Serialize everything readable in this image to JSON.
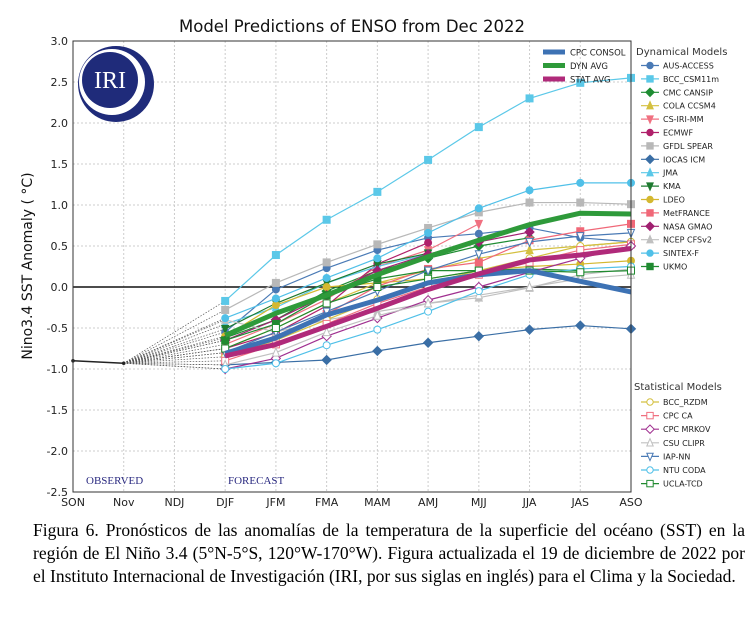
{
  "chart_data": {
    "type": "line",
    "title": "Model Predictions of ENSO from Dec 2022",
    "ylabel": "Nino3.4 SST Anomaly ( °C)",
    "xlabel": "",
    "categories": [
      "SON",
      "Nov",
      "NDJ",
      "DJF",
      "JFM",
      "FMA",
      "MAM",
      "AMJ",
      "MJJ",
      "JJA",
      "JAS",
      "ASO"
    ],
    "ylim": [
      -2.5,
      3.0
    ],
    "yticks": [
      "-2.5",
      "-2.0",
      "-1.5",
      "-1.0",
      "-0.5",
      "0.0",
      "0.5",
      "1.0",
      "1.5",
      "2.0",
      "2.5",
      "3.0"
    ],
    "grid": true,
    "observed_label": "OBSERVED",
    "forecast_label": "FORECAST",
    "observed": {
      "categories": [
        "SON",
        "Nov"
      ],
      "values": [
        -0.9,
        -0.93
      ]
    },
    "forecast_categories": [
      "DJF",
      "JFM",
      "FMA",
      "MAM",
      "AMJ",
      "MJJ",
      "JJA",
      "JAS",
      "ASO"
    ],
    "averages": [
      {
        "name": "CPC CONSOL",
        "color": "#3d72b4",
        "values": [
          -0.81,
          -0.62,
          -0.34,
          -0.16,
          0.05,
          0.15,
          0.2,
          0.07,
          -0.06
        ]
      },
      {
        "name": "DYN AVG",
        "color": "#2e9a3a",
        "values": [
          -0.59,
          -0.32,
          -0.1,
          0.15,
          0.37,
          0.57,
          0.76,
          0.9,
          0.89
        ]
      },
      {
        "name": "STAT AVG",
        "color": "#b02a7a",
        "values": [
          -0.84,
          -0.7,
          -0.48,
          -0.26,
          -0.03,
          0.16,
          0.33,
          0.39,
          0.47
        ]
      }
    ],
    "legend_dynamical_title": "Dynamical Models",
    "legend_statistical_title": "Statistical Models",
    "dynamical": [
      {
        "name": "AUS-ACCESS",
        "color": "#4a7ab5",
        "marker": "circle",
        "values": [
          -0.55,
          -0.03,
          0.23,
          0.45,
          0.6,
          0.65,
          0.72,
          0.6,
          0.55
        ]
      },
      {
        "name": "BCC_CSM11m",
        "color": "#5bc8e8",
        "marker": "square",
        "values": [
          -0.17,
          0.39,
          0.82,
          1.16,
          1.55,
          1.95,
          2.3,
          2.49,
          2.55
        ]
      },
      {
        "name": "CMC CANSIP",
        "color": "#1e8c32",
        "marker": "diamond",
        "values": [
          -0.62,
          -0.4,
          -0.05,
          0.2,
          0.35,
          0.5,
          0.6,
          null,
          null
        ]
      },
      {
        "name": "COLA CCSM4",
        "color": "#d4c040",
        "marker": "triangle-up",
        "values": [
          -0.75,
          -0.5,
          -0.2,
          0.05,
          0.2,
          0.35,
          0.45,
          0.5,
          0.55
        ]
      },
      {
        "name": "CS-IRI-MM",
        "color": "#f07080",
        "marker": "triangle-down",
        "values": [
          -0.7,
          -0.45,
          -0.15,
          0.25,
          0.45,
          0.77,
          null,
          null,
          null
        ]
      },
      {
        "name": "ECMWF",
        "color": "#b0206a",
        "marker": "circle",
        "values": [
          -0.75,
          -0.56,
          -0.23,
          0.28,
          0.54,
          null,
          null,
          null,
          null
        ]
      },
      {
        "name": "GFDL SPEAR",
        "color": "#b8b8b8",
        "marker": "square",
        "values": [
          -0.28,
          0.05,
          0.3,
          0.52,
          0.72,
          0.91,
          1.03,
          1.03,
          1.01
        ]
      },
      {
        "name": "IOCAS ICM",
        "color": "#3a6ea5",
        "marker": "diamond",
        "values": [
          -0.95,
          -0.92,
          -0.89,
          -0.78,
          -0.68,
          -0.6,
          -0.52,
          -0.47,
          -0.51
        ]
      },
      {
        "name": "JMA",
        "color": "#5bc8e8",
        "marker": "triangle-up",
        "values": [
          -0.45,
          -0.25,
          0.05,
          0.25,
          0.4,
          null,
          null,
          null,
          null
        ]
      },
      {
        "name": "KMA",
        "color": "#1e7a30",
        "marker": "triangle-down",
        "values": [
          -0.51,
          -0.2,
          0.05,
          0.28,
          0.41,
          null,
          null,
          null,
          null
        ]
      },
      {
        "name": "LDEO",
        "color": "#d4b830",
        "marker": "circle",
        "values": [
          -0.6,
          -0.22,
          0.0,
          0.05,
          0.1,
          0.2,
          0.25,
          0.28,
          0.32
        ]
      },
      {
        "name": "MetFRANCE",
        "color": "#f06878",
        "marker": "square",
        "values": [
          -0.8,
          -0.64,
          -0.33,
          0.01,
          0.22,
          0.3,
          0.57,
          0.68,
          0.77
        ]
      },
      {
        "name": "NASA GMAO",
        "color": "#a02070",
        "marker": "diamond",
        "values": [
          -0.65,
          -0.4,
          -0.1,
          0.2,
          0.4,
          0.55,
          0.67,
          null,
          null
        ]
      },
      {
        "name": "NCEP CFSv2",
        "color": "#c0c0c0",
        "marker": "triangle-up",
        "values": [
          -0.4,
          -0.55,
          -0.4,
          -0.3,
          -0.2,
          -0.13,
          -0.01,
          0.15,
          0.22
        ]
      },
      {
        "name": "SINTEX-F",
        "color": "#50c0e8",
        "marker": "circle",
        "values": [
          -0.38,
          -0.14,
          0.11,
          0.35,
          0.66,
          0.96,
          1.18,
          1.27,
          1.27
        ]
      },
      {
        "name": "UKMO",
        "color": "#208a30",
        "marker": "square",
        "values": [
          -0.65,
          -0.45,
          -0.1,
          0.1,
          0.2,
          0.2,
          0.22,
          0.2,
          null
        ]
      }
    ],
    "statistical": [
      {
        "name": "BCC_RZDM",
        "color": "#d4c040",
        "marker": "circle",
        "values": [
          -0.85,
          -0.65,
          -0.4,
          -0.15,
          0.05,
          0.2,
          0.35,
          0.5,
          0.55
        ]
      },
      {
        "name": "CPC CA",
        "color": "#f07080",
        "marker": "square",
        "values": [
          -0.9,
          -0.7,
          -0.45,
          -0.2,
          0.0,
          0.15,
          0.3,
          0.45,
          0.52
        ]
      },
      {
        "name": "CPC MRKOV",
        "color": "#a03090",
        "marker": "diamond",
        "values": [
          -1.0,
          -0.87,
          -0.6,
          -0.38,
          -0.16,
          0.0,
          0.18,
          0.35,
          0.5
        ]
      },
      {
        "name": "CSU CLIPR",
        "color": "#c0c0c0",
        "marker": "triangle-up",
        "values": [
          -0.95,
          -0.8,
          -0.55,
          -0.35,
          -0.2,
          -0.1,
          0.0,
          0.1,
          0.15
        ]
      },
      {
        "name": "IAP-NN",
        "color": "#4a7ab5",
        "marker": "triangle-down",
        "values": [
          -0.8,
          -0.55,
          -0.3,
          -0.05,
          0.2,
          0.4,
          0.55,
          0.62,
          0.66
        ]
      },
      {
        "name": "NTU CODA",
        "color": "#50c0e8",
        "marker": "circle",
        "values": [
          -1.0,
          -0.93,
          -0.71,
          -0.52,
          -0.3,
          -0.05,
          0.15,
          0.22,
          0.25
        ]
      },
      {
        "name": "UCLA-TCD",
        "color": "#208a30",
        "marker": "square",
        "values": [
          -0.75,
          -0.5,
          -0.2,
          0.0,
          0.1,
          0.2,
          0.2,
          0.18,
          0.2
        ]
      }
    ]
  },
  "logo": {
    "text": "IRI"
  },
  "caption": "Figura 6. Pronósticos de las anomalías de la temperatura de la superficie del océano (SST) en la región de El Niño 3.4 (5°N-5°S, 120°W-170°W). Figura actualizada el 19 de diciembre de 2022 por el Instituto Internacional de Investigación (IRI, por sus siglas en inglés) para el Clima y la Sociedad."
}
